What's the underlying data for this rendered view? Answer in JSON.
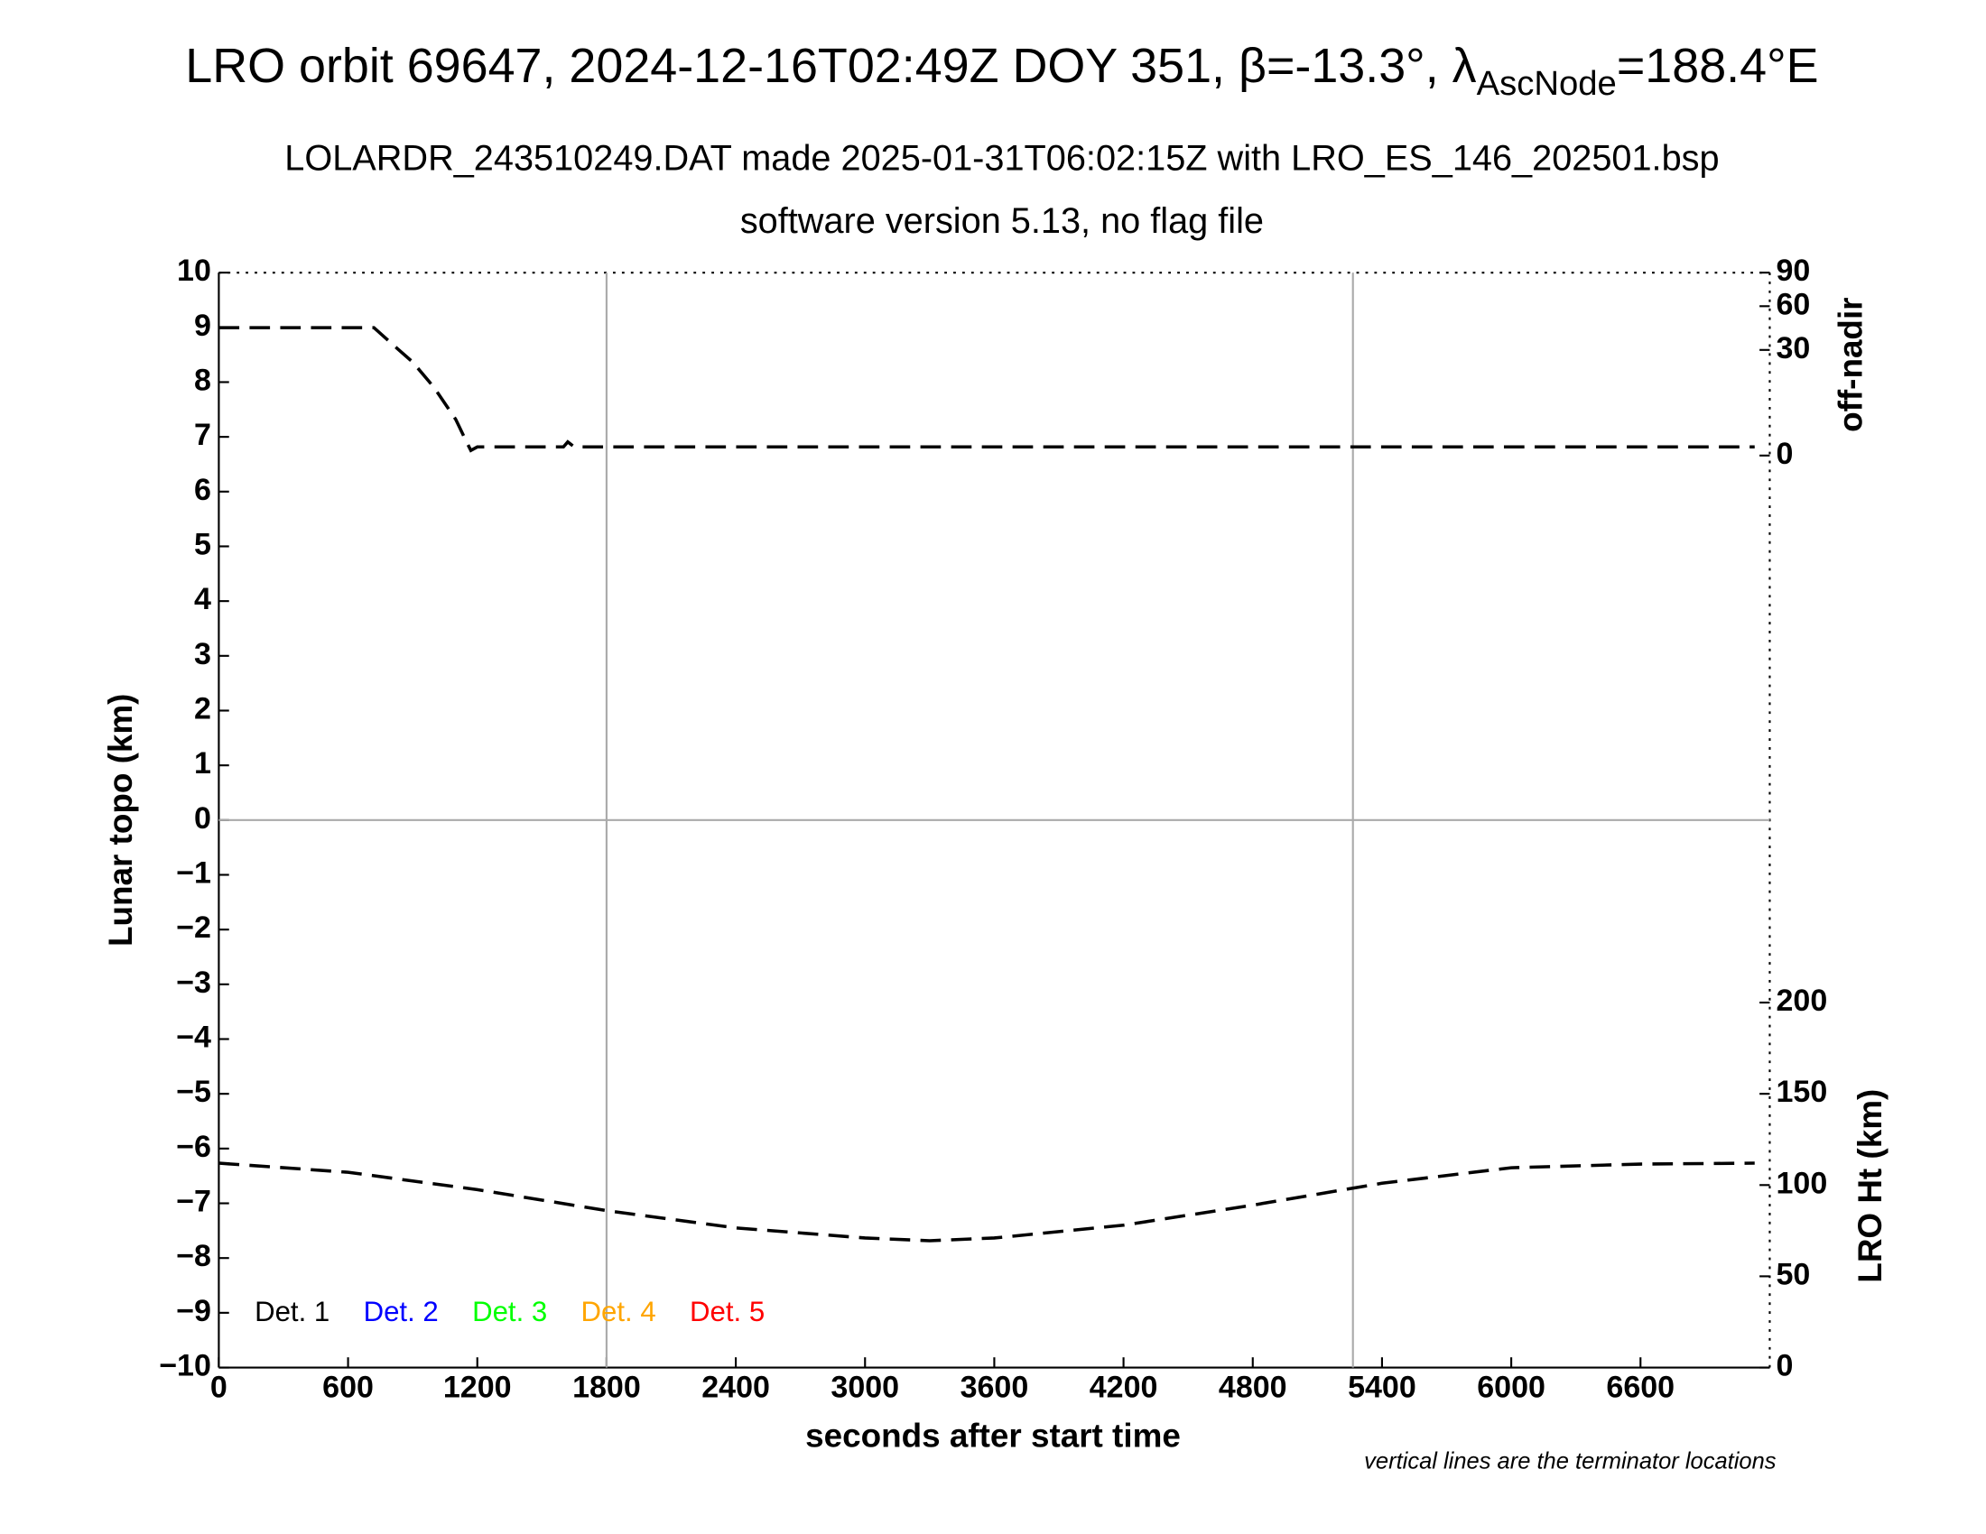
{
  "chart_data": {
    "type": "line",
    "title": "LRO orbit 69647, 2024-12-16T02:49Z DOY 351, β=-13.3°, λ",
    "title_subscript": "AscNode",
    "title_suffix": "=188.4°E",
    "subtitle": "LOLARDR_243510249.DAT made 2025-01-31T06:02:15Z with LRO_ES_146_202501.bsp",
    "subtitle2": "software version 5.13, no flag file",
    "xlabel": "seconds after start time",
    "ylabel": "Lunar topo (km)",
    "y2label": "LRO Ht (km)",
    "y3label": "off-nadir",
    "note": "vertical lines are the terminator locations",
    "xlim": [
      0,
      7200
    ],
    "xticks": [
      0,
      600,
      1200,
      1800,
      2400,
      3000,
      3600,
      4200,
      4800,
      5400,
      6000,
      6600
    ],
    "ylim": [
      -10,
      10
    ],
    "yticks": [
      {
        "value": -10,
        "label": "−10"
      },
      {
        "value": -9,
        "label": "−9"
      },
      {
        "value": -8,
        "label": "−8"
      },
      {
        "value": -7,
        "label": "−7"
      },
      {
        "value": -6,
        "label": "−6"
      },
      {
        "value": -5,
        "label": "−5"
      },
      {
        "value": -4,
        "label": "−4"
      },
      {
        "value": -3,
        "label": "−3"
      },
      {
        "value": -2,
        "label": "−2"
      },
      {
        "value": -1,
        "label": "−1"
      },
      0,
      1,
      2,
      3,
      4,
      5,
      6,
      7,
      8,
      9,
      10
    ],
    "y2lim": [
      0,
      600
    ],
    "y2ticks": [
      0,
      50,
      100,
      150,
      200
    ],
    "y3lim": [
      0,
      90
    ],
    "y3ticks": [
      0,
      30,
      60,
      90
    ],
    "y3scale": "sqrt",
    "zero_line": true,
    "terminators": [
      1800,
      5265
    ],
    "detectors": [
      {
        "name": "Det. 1",
        "color": "#000000"
      },
      {
        "name": "Det. 2",
        "color": "#0000ff"
      },
      {
        "name": "Det. 3",
        "color": "#00ff00"
      },
      {
        "name": "Det. 4",
        "color": "#ffa500"
      },
      {
        "name": "Det. 5",
        "color": "#ff0000"
      }
    ],
    "series": [
      {
        "axis": "y3",
        "color": "#000000",
        "x": [
          0,
          720,
          800,
          900,
          1000,
          1100,
          1150,
          1170,
          1200,
          1600,
          1620,
          1650,
          1800,
          3600,
          5400,
          7130
        ],
        "values": [
          44,
          44,
          34,
          23.5,
          12.4,
          3.5,
          0.5,
          0.07,
          0.2,
          0.2,
          0.5,
          0.2,
          0.2,
          0.2,
          0.2,
          0.2
        ]
      },
      {
        "axis": "y2",
        "color": "#000000",
        "x": [
          0,
          600,
          1200,
          1800,
          2400,
          3000,
          3300,
          3600,
          4200,
          4800,
          5400,
          6000,
          6600,
          7130
        ],
        "values": [
          112,
          107,
          97.5,
          86,
          76.5,
          71,
          69.5,
          71,
          78,
          89,
          101,
          109.5,
          111.5,
          112
        ]
      }
    ]
  }
}
